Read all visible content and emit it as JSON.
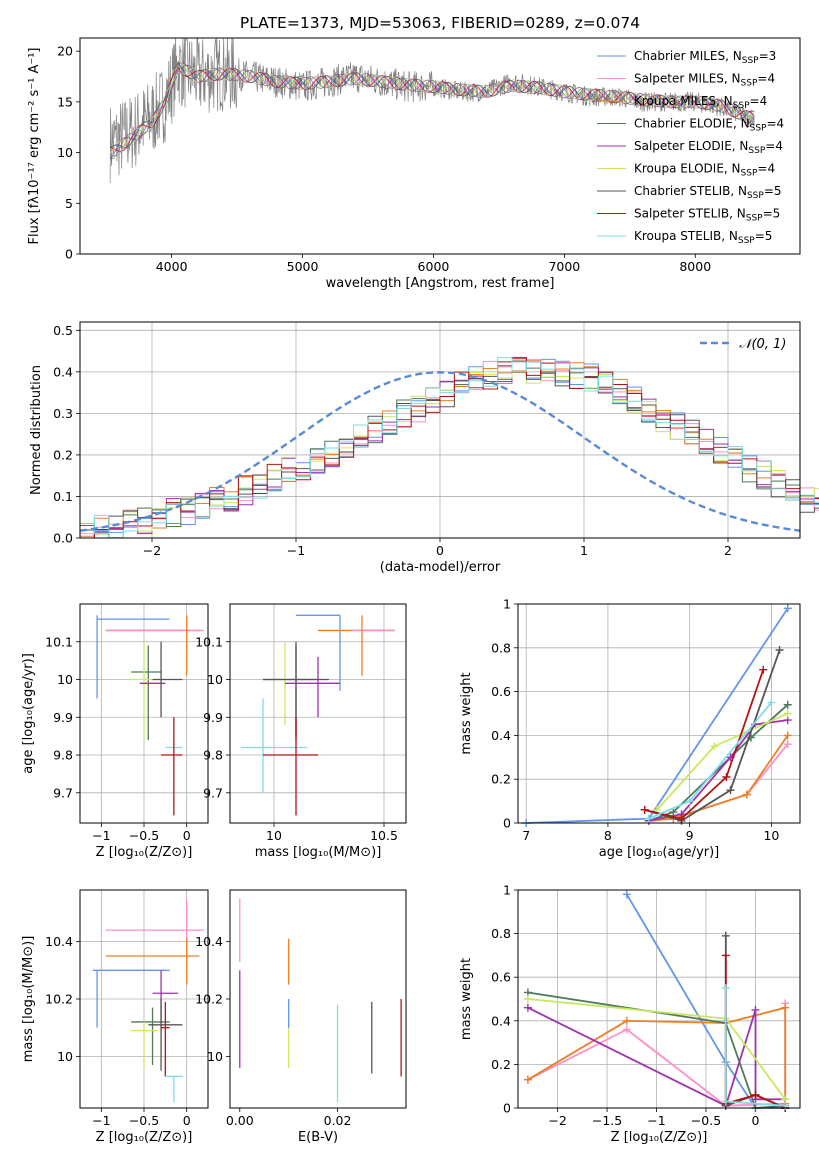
{
  "figure_title": "PLATE=1373, MJD=53063, FIBERID=0289, z=0.074",
  "chart_data": [
    {
      "id": "spectrum",
      "type": "line",
      "xlabel": "wavelength [Angstrom, rest frame]",
      "ylabel": "Flux [fλ10⁻¹⁷ erg cm⁻² s⁻¹ A⁻¹]",
      "xlim": [
        3300,
        8800
      ],
      "ylim": [
        0,
        21.3
      ],
      "xticks": [
        4000,
        5000,
        6000,
        7000,
        8000
      ],
      "yticks": [
        0,
        5,
        10,
        15,
        20
      ],
      "grid": false,
      "legend_position": "top-right",
      "observed": {
        "color": "#808080",
        "x": [
          3550,
          3700,
          3850,
          3950,
          4050,
          4200,
          4400,
          4600,
          4800,
          5000,
          5200,
          5400,
          5600,
          5800,
          6000,
          6200,
          6400,
          6600,
          6800,
          7000,
          7200,
          7400,
          7600,
          7800,
          8000,
          8200,
          8400
        ],
        "y": [
          11,
          12,
          13.5,
          15,
          18.5,
          17.5,
          18,
          17.5,
          17,
          16.5,
          17,
          17.5,
          17,
          16.5,
          16.5,
          16,
          16,
          17,
          16.5,
          16,
          15.5,
          15.5,
          15,
          15,
          15,
          14.5,
          13.5
        ]
      },
      "series": [
        {
          "name": "Chabrier MILES, N<sub>SSP</sub>=3",
          "color": "#6495ed"
        },
        {
          "name": "Salpeter MILES, N<sub>SSP</sub>=4",
          "color": "#ff8fc8"
        },
        {
          "name": "Kroupa MILES, N<sub>SSP</sub>=4",
          "color": "#ee7f27"
        },
        {
          "name": "Chabrier ELODIE, N<sub>SSP</sub>=4",
          "color": "#4d7a59"
        },
        {
          "name": "Salpeter ELODIE, N<sub>SSP</sub>=4",
          "color": "#9e32b0"
        },
        {
          "name": "Kroupa ELODIE, N<sub>SSP</sub>=4",
          "color": "#c8e864"
        },
        {
          "name": "Chabrier STELIB, N<sub>SSP</sub>=5",
          "color": "#555555"
        },
        {
          "name": "Salpeter STELIB, N<sub>SSP</sub>=5",
          "color": "#b41414"
        },
        {
          "name": "Kroupa STELIB, N<sub>SSP</sub>=5",
          "color": "#7fdce6"
        }
      ],
      "model_curve": {
        "x": [
          3550,
          3700,
          3850,
          3950,
          4050,
          4200,
          4400,
          4600,
          4800,
          5000,
          5200,
          5400,
          5600,
          5800,
          6000,
          6200,
          6400,
          6600,
          6800,
          7000,
          7200,
          7400,
          7600,
          7800,
          8000,
          8200,
          8400
        ],
        "y": [
          10,
          11.5,
          13,
          15,
          18.5,
          17.5,
          17.8,
          17.5,
          17,
          16.8,
          17,
          17.3,
          17,
          16.7,
          16.5,
          16.2,
          16,
          16.6,
          16.4,
          16,
          15.7,
          15.5,
          15.2,
          15,
          15,
          14.6,
          13.5
        ]
      }
    },
    {
      "id": "residuals",
      "type": "histogram",
      "xlabel": "(data-model)/error",
      "ylabel": "Normed distribution",
      "xlim": [
        -2.5,
        2.5
      ],
      "ylim": [
        0,
        0.52
      ],
      "xticks": [
        -2,
        -1,
        0,
        1,
        2
      ],
      "yticks": [
        0.0,
        0.1,
        0.2,
        0.3,
        0.4,
        0.5
      ],
      "grid": true,
      "legend_position": "top-right",
      "reference": {
        "name": "𝒩(0, 1)",
        "color": "#5a8ad6",
        "mean": 0,
        "sigma": 1
      },
      "bin_start": -2.5,
      "bin_width": 0.1,
      "base_values": [
        0.02,
        0.025,
        0.03,
        0.035,
        0.04,
        0.05,
        0.06,
        0.065,
        0.08,
        0.09,
        0.1,
        0.115,
        0.13,
        0.145,
        0.16,
        0.175,
        0.19,
        0.205,
        0.22,
        0.24,
        0.26,
        0.28,
        0.3,
        0.31,
        0.33,
        0.35,
        0.37,
        0.38,
        0.39,
        0.4,
        0.41,
        0.4,
        0.41,
        0.4,
        0.39,
        0.385,
        0.37,
        0.35,
        0.33,
        0.31,
        0.29,
        0.27,
        0.25,
        0.23,
        0.21,
        0.19,
        0.17,
        0.15,
        0.13,
        0.11,
        0.095,
        0.085,
        0.075,
        0.065,
        0.055,
        0.05,
        0.04,
        0.035,
        0.03,
        0.03
      ]
    },
    {
      "id": "age-vs-Z",
      "type": "scatter",
      "xlabel": "Z [log₁₀(Z/Z⊙)]",
      "ylabel": "age  [log₁₀(age/yr)]",
      "xlim": [
        -1.25,
        0.25
      ],
      "ylim": [
        9.62,
        10.2
      ],
      "xticks": [
        -1.0,
        -0.5,
        0.0
      ],
      "yticks": [
        9.7,
        9.8,
        9.9,
        10.0,
        10.1
      ],
      "grid": true,
      "points": [
        {
          "series": 0,
          "x": -1.05,
          "y": 10.16,
          "xl": -1.05,
          "xh": -0.2,
          "yl": 9.95,
          "yh": 10.17
        },
        {
          "series": 2,
          "x": -0.95,
          "y": 10.13,
          "xl": -0.95,
          "xh": 0.15,
          "yl": 10.13,
          "yh": 10.13
        },
        {
          "series": 1,
          "x": 0.0,
          "y": 10.13,
          "xl": -0.95,
          "xh": 0.2,
          "yl": 10.13,
          "yh": 10.13
        },
        {
          "series": 2,
          "x": 0.0,
          "y": 10.1,
          "xl": 0.0,
          "xh": 0.0,
          "yl": 10.01,
          "yh": 10.17
        },
        {
          "series": 3,
          "x": -0.45,
          "y": 10.02,
          "xl": -0.65,
          "xh": -0.3,
          "yl": 9.84,
          "yh": 10.09
        },
        {
          "series": 5,
          "x": -0.5,
          "y": 10.0,
          "xl": -0.7,
          "xh": -0.3,
          "yl": 9.84,
          "yh": 10.1
        },
        {
          "series": 4,
          "x": -0.35,
          "y": 9.99,
          "xl": -0.55,
          "xh": -0.25,
          "yl": 9.99,
          "yh": 9.99
        },
        {
          "series": 6,
          "x": -0.3,
          "y": 10.0,
          "xl": -0.4,
          "xh": -0.05,
          "yl": 9.9,
          "yh": 10.1
        },
        {
          "series": 8,
          "x": -0.15,
          "y": 9.82,
          "xl": -0.25,
          "xh": -0.05,
          "yl": 9.82,
          "yh": 9.82
        },
        {
          "series": 7,
          "x": -0.15,
          "y": 9.8,
          "xl": -0.3,
          "xh": -0.05,
          "yl": 9.64,
          "yh": 9.9
        }
      ]
    },
    {
      "id": "age-vs-mass",
      "type": "scatter",
      "xlabel": "mass [log₁₀(M/M⊙)]",
      "ylabel": "",
      "xlim": [
        9.8,
        10.6
      ],
      "ylim": [
        9.62,
        10.2
      ],
      "xticks": [
        10.0,
        10.5
      ],
      "yticks": [
        9.7,
        9.8,
        9.9,
        10.0,
        10.1
      ],
      "grid": true,
      "points": [
        {
          "series": 0,
          "x": 10.3,
          "y": 10.17,
          "xl": 10.1,
          "xh": 10.3,
          "yl": 9.97,
          "yh": 10.17
        },
        {
          "series": 2,
          "x": 10.35,
          "y": 10.13,
          "xl": 10.2,
          "xh": 10.55,
          "yl": 10.13,
          "yh": 10.13
        },
        {
          "series": 1,
          "x": 10.45,
          "y": 10.13,
          "xl": 10.35,
          "xh": 10.55,
          "yl": 10.13,
          "yh": 10.13
        },
        {
          "series": 2,
          "x": 10.4,
          "y": 10.1,
          "xl": 10.4,
          "xh": 10.4,
          "yl": 10.01,
          "yh": 10.17
        },
        {
          "series": 3,
          "x": 10.1,
          "y": 10.0,
          "xl": 9.95,
          "xh": 10.2,
          "yl": 9.84,
          "yh": 10.09
        },
        {
          "series": 5,
          "x": 10.05,
          "y": 10.0,
          "xl": 9.95,
          "xh": 10.15,
          "yl": 9.88,
          "yh": 10.1
        },
        {
          "series": 4,
          "x": 10.2,
          "y": 9.99,
          "xl": 10.05,
          "xh": 10.3,
          "yl": 9.9,
          "yh": 10.06
        },
        {
          "series": 6,
          "x": 10.1,
          "y": 10.0,
          "xl": 9.95,
          "xh": 10.25,
          "yl": 9.85,
          "yh": 10.1
        },
        {
          "series": 8,
          "x": 9.95,
          "y": 9.82,
          "xl": 9.85,
          "xh": 10.15,
          "yl": 9.7,
          "yh": 9.95
        },
        {
          "series": 7,
          "x": 10.1,
          "y": 9.8,
          "xl": 9.95,
          "xh": 10.2,
          "yl": 9.64,
          "yh": 9.9
        }
      ]
    },
    {
      "id": "weight-vs-age",
      "type": "line",
      "xlabel": "age  [log₁₀(age/yr)]",
      "ylabel": "mass weight",
      "xlim": [
        6.9,
        10.35
      ],
      "ylim": [
        0.0,
        1.0
      ],
      "xticks": [
        7,
        8,
        9,
        10
      ],
      "yticks": [
        0.0,
        0.2,
        0.4,
        0.6,
        0.8,
        1.0
      ],
      "grid": true,
      "series_points": [
        {
          "series": 0,
          "x": [
            7.0,
            8.5,
            10.2
          ],
          "y": [
            0.0,
            0.02,
            0.98
          ]
        },
        {
          "series": 1,
          "x": [
            8.5,
            8.8,
            9.7,
            10.2
          ],
          "y": [
            0.01,
            0.02,
            0.13,
            0.36
          ]
        },
        {
          "series": 2,
          "x": [
            8.5,
            8.8,
            9.7,
            10.2
          ],
          "y": [
            0.01,
            0.02,
            0.13,
            0.4
          ]
        },
        {
          "series": 3,
          "x": [
            8.5,
            8.8,
            9.75,
            10.2
          ],
          "y": [
            0.01,
            0.05,
            0.39,
            0.54
          ]
        },
        {
          "series": 4,
          "x": [
            8.5,
            8.9,
            9.5,
            9.8,
            10.2
          ],
          "y": [
            0.01,
            0.04,
            0.3,
            0.45,
            0.47
          ]
        },
        {
          "series": 5,
          "x": [
            8.6,
            9.3,
            10.2
          ],
          "y": [
            0.06,
            0.35,
            0.5
          ]
        },
        {
          "series": 6,
          "x": [
            8.45,
            8.9,
            9.5,
            10.1
          ],
          "y": [
            0.06,
            0.01,
            0.15,
            0.79
          ]
        },
        {
          "series": 7,
          "x": [
            8.45,
            8.9,
            9.45,
            9.9
          ],
          "y": [
            0.06,
            0.02,
            0.21,
            0.7
          ]
        },
        {
          "series": 8,
          "x": [
            8.5,
            9.0,
            10.0
          ],
          "y": [
            0.02,
            0.1,
            0.55
          ]
        }
      ]
    },
    {
      "id": "mass-vs-Z",
      "type": "scatter",
      "xlabel": "Z [log₁₀(Z/Z⊙)]",
      "ylabel": "mass [log₁₀(M/M⊙)]",
      "xlim": [
        -1.25,
        0.25
      ],
      "ylim": [
        9.82,
        10.58
      ],
      "xticks": [
        -1.0,
        -0.5,
        0.0
      ],
      "yticks": [
        10.0,
        10.2,
        10.4
      ],
      "grid": true,
      "points": [
        {
          "series": 1,
          "x": 0.0,
          "y": 10.44,
          "xl": -0.95,
          "xh": 0.2,
          "yl": 10.33,
          "yh": 10.55
        },
        {
          "series": 2,
          "x": 0.0,
          "y": 10.35,
          "xl": -0.95,
          "xh": 0.15,
          "yl": 10.25,
          "yh": 10.41
        },
        {
          "series": 0,
          "x": -1.05,
          "y": 10.3,
          "xl": -1.1,
          "xh": -0.2,
          "yl": 10.1,
          "yh": 10.3
        },
        {
          "series": 4,
          "x": -0.3,
          "y": 10.22,
          "xl": -0.4,
          "xh": -0.1,
          "yl": 10.1,
          "yh": 10.3
        },
        {
          "series": 3,
          "x": -0.4,
          "y": 10.12,
          "xl": -0.65,
          "xh": -0.2,
          "yl": 9.97,
          "yh": 10.17
        },
        {
          "series": 6,
          "x": -0.3,
          "y": 10.11,
          "xl": -0.45,
          "xh": -0.05,
          "yl": 9.95,
          "yh": 10.2
        },
        {
          "series": 5,
          "x": -0.5,
          "y": 10.09,
          "xl": -0.65,
          "xh": -0.35,
          "yl": 9.96,
          "yh": 10.12
        },
        {
          "series": 7,
          "x": -0.25,
          "y": 10.1,
          "xl": -0.3,
          "xh": -0.2,
          "yl": 9.93,
          "yh": 10.19
        },
        {
          "series": 8,
          "x": -0.15,
          "y": 9.93,
          "xl": -0.25,
          "xh": -0.05,
          "yl": 9.84,
          "yh": 9.93
        }
      ]
    },
    {
      "id": "mass-vs-EBV",
      "type": "scatter",
      "xlabel": "E(B-V)",
      "ylabel": "",
      "xlim": [
        -0.002,
        0.034
      ],
      "ylim": [
        9.82,
        10.58
      ],
      "xticks": [
        0.0,
        0.02
      ],
      "xticklabels": [
        "0.00",
        "0.02"
      ],
      "yticks": [
        10.0,
        10.2,
        10.4
      ],
      "grid": false,
      "points": [
        {
          "series": 1,
          "x": 0.0,
          "y": 10.44,
          "yl": 10.33,
          "yh": 10.55
        },
        {
          "series": 4,
          "x": 0.0,
          "y": 10.2,
          "yl": 9.96,
          "yh": 10.3
        },
        {
          "series": 2,
          "x": 0.01,
          "y": 10.35,
          "yl": 10.25,
          "yh": 10.41
        },
        {
          "series": 5,
          "x": 0.01,
          "y": 10.05,
          "yl": 9.96,
          "yh": 10.17
        },
        {
          "series": 0,
          "x": 0.01,
          "y": 10.2,
          "yl": 10.1,
          "yh": 10.2
        },
        {
          "series": 8,
          "x": 0.02,
          "y": 10.0,
          "yl": 9.84,
          "yh": 10.18
        },
        {
          "series": 6,
          "x": 0.027,
          "y": 10.1,
          "yl": 9.94,
          "yh": 10.19
        },
        {
          "series": 7,
          "x": 0.033,
          "y": 10.1,
          "yl": 9.93,
          "yh": 10.2
        }
      ]
    },
    {
      "id": "weight-vs-Z",
      "type": "line",
      "xlabel": "Z [log₁₀(Z/Z⊙)]",
      "ylabel": "mass weight",
      "xlim": [
        -2.4,
        0.45
      ],
      "ylim": [
        0.0,
        1.0
      ],
      "xticks": [
        -2.0,
        -1.5,
        -1.0,
        -0.5,
        0.0
      ],
      "yticks": [
        0.0,
        0.2,
        0.4,
        0.6,
        0.8,
        1.0
      ],
      "grid": true,
      "series_points": [
        {
          "series": 0,
          "x": [
            -1.3,
            -0.3,
            0.0,
            0.3
          ],
          "y": [
            0.98,
            0.21,
            0.0,
            0.0
          ]
        },
        {
          "series": 1,
          "x": [
            -2.3,
            -1.3,
            -0.3,
            0.3,
            0.3
          ],
          "y": [
            0.13,
            0.36,
            0.01,
            0.02,
            0.48
          ]
        },
        {
          "series": 2,
          "x": [
            -2.3,
            -1.3,
            -0.3,
            0.3,
            0.3
          ],
          "y": [
            0.13,
            0.4,
            0.39,
            0.46,
            0.02
          ]
        },
        {
          "series": 3,
          "x": [
            -2.3,
            -0.3,
            0.0,
            0.3
          ],
          "y": [
            0.53,
            0.39,
            0.0,
            0.01
          ]
        },
        {
          "series": 4,
          "x": [
            -2.3,
            -0.3,
            0.0,
            0.0,
            0.3
          ],
          "y": [
            0.46,
            0.01,
            0.45,
            0.04,
            0.04
          ]
        },
        {
          "series": 5,
          "x": [
            -2.3,
            -0.3,
            0.3
          ],
          "y": [
            0.5,
            0.41,
            0.04
          ]
        },
        {
          "series": 6,
          "x": [
            -0.3,
            -0.3,
            0.0,
            0.3
          ],
          "y": [
            0.79,
            0.01,
            0.06,
            0.0
          ]
        },
        {
          "series": 7,
          "x": [
            -0.3,
            -0.3,
            0.0,
            0.3
          ],
          "y": [
            0.7,
            0.02,
            0.06,
            0.0
          ]
        },
        {
          "series": 8,
          "x": [
            -0.3,
            -0.3,
            0.3
          ],
          "y": [
            0.55,
            0.03,
            0.01
          ]
        }
      ]
    }
  ]
}
